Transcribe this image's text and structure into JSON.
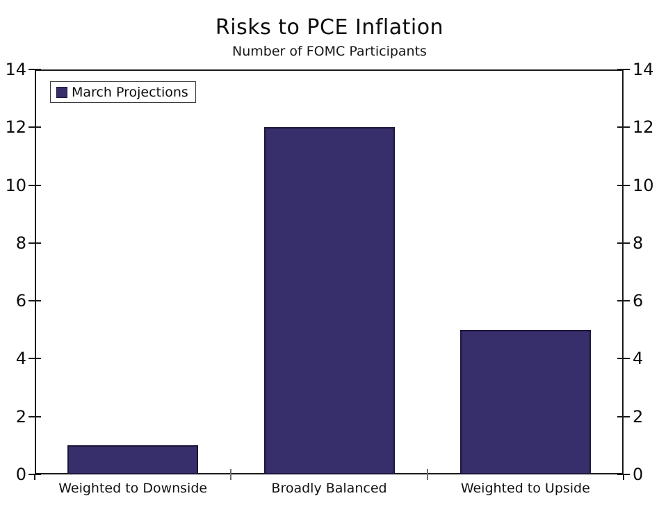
{
  "chart_data": {
    "type": "bar",
    "title": "Risks to PCE Inflation",
    "subtitle": "Number of FOMC Participants",
    "legend": [
      {
        "label": "March Projections",
        "color": "#362f6b"
      }
    ],
    "legend_position": "top-left-inside",
    "categories": [
      "Weighted to Downside",
      "Broadly Balanced",
      "Weighted to Upside"
    ],
    "values": [
      1,
      12,
      5
    ],
    "ylim": [
      0,
      14
    ],
    "yticks": [
      0,
      2,
      4,
      6,
      8,
      10,
      12,
      14
    ],
    "y_axis_mirrored": true,
    "grid": false,
    "bar_color": "#362f6b",
    "bar_border_color": "#1c1638",
    "axis_color": "#1a1a1a",
    "category_tick_color": "#6e6e6e",
    "background_color": "#ffffff"
  }
}
